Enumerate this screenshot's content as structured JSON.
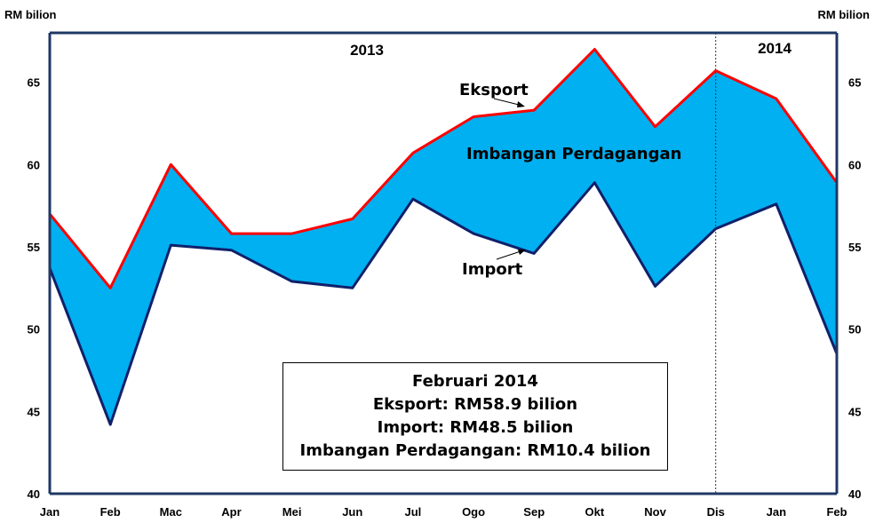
{
  "chart_data": {
    "type": "area",
    "categories": [
      "Jan",
      "Feb",
      "Mac",
      "Apr",
      "Mei",
      "Jun",
      "Jul",
      "Ogo",
      "Sep",
      "Okt",
      "Nov",
      "Dis",
      "Jan",
      "Feb"
    ],
    "series": [
      {
        "name": "Eksport",
        "values": [
          57.0,
          52.5,
          60.0,
          55.8,
          55.8,
          56.7,
          60.7,
          62.9,
          63.3,
          67.0,
          62.3,
          65.7,
          64.0,
          58.9
        ],
        "color": "#ff0000"
      },
      {
        "name": "Import",
        "values": [
          53.7,
          44.2,
          55.1,
          54.8,
          52.9,
          52.5,
          57.9,
          55.8,
          54.6,
          58.9,
          52.6,
          56.1,
          57.6,
          48.5
        ],
        "color": "#10206a"
      }
    ],
    "fill_label": "Imbangan Perdagangan",
    "fill_color": "#00b0f0",
    "ylim": [
      40,
      68
    ],
    "yticks": [
      40,
      45,
      50,
      55,
      60,
      65
    ],
    "ylabel_left": "RM bilion",
    "ylabel_right": "RM bilion",
    "year_labels": [
      "2013",
      "2014"
    ],
    "year_divider_after_category_index": 11,
    "legend": "none",
    "grid": false,
    "annotation_box": {
      "lines": [
        "Februari 2014",
        "Eksport: RM58.9  bilion",
        "Import: RM48.5  bilion",
        "Imbangan Perdagangan: RM10.4 bilion"
      ]
    }
  }
}
